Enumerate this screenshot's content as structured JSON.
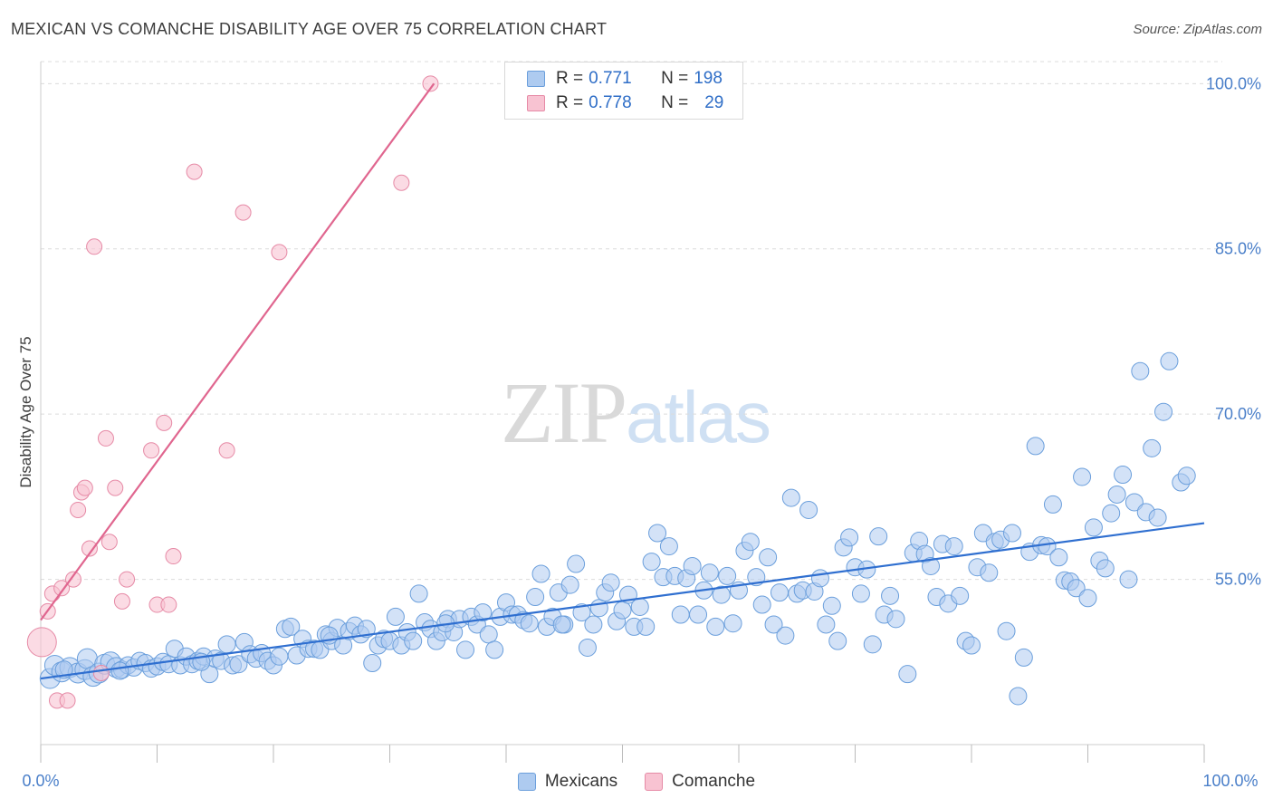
{
  "header": {
    "title": "MEXICAN VS COMANCHE DISABILITY AGE OVER 75 CORRELATION CHART",
    "source": "Source: ZipAtlas.com"
  },
  "watermark": {
    "part1": "ZIP",
    "part2": "atlas"
  },
  "legend": {
    "rows": [
      {
        "r_label": "R = ",
        "r_value": "0.771",
        "n_label": "N = ",
        "n_value": "198"
      },
      {
        "r_label": "R = ",
        "r_value": "0.778",
        "n_label": "N = ",
        "n_value": "29"
      }
    ]
  },
  "bottom_legend": {
    "series1": "Mexicans",
    "series2": "Comanche"
  },
  "colors": {
    "mexicans_fill": "#aecbf0",
    "mexicans_stroke": "#6b9fdc",
    "mexicans_line": "#2f6fd0",
    "comanche_fill": "#f8c3d2",
    "comanche_stroke": "#e68aa6",
    "comanche_line": "#e0668f",
    "grid": "#dcdcdc",
    "axis_text": "#4a7fc9"
  },
  "chart_data": {
    "type": "scatter",
    "title": "MEXICAN VS COMANCHE DISABILITY AGE OVER 75 CORRELATION CHART",
    "xlabel": "",
    "ylabel": "Disability Age Over 75",
    "xlim": [
      0,
      100
    ],
    "ylim": [
      40,
      102
    ],
    "x_tick_labels": [
      "0.0%",
      "100.0%"
    ],
    "y_ticks": [
      55,
      70,
      85,
      100
    ],
    "y_tick_labels": [
      "55.0%",
      "70.0%",
      "85.0%",
      "100.0%"
    ],
    "grid": true,
    "legend_position": "top-center",
    "series": [
      {
        "name": "Mexicans",
        "r": 0.771,
        "n": 198,
        "trendline": {
          "x": [
            0,
            100
          ],
          "y": [
            46.0,
            60.1
          ]
        },
        "points": [
          [
            0.8,
            46.0
          ],
          [
            1.2,
            47.2
          ],
          [
            1.8,
            46.6
          ],
          [
            2.5,
            47.0
          ],
          [
            3.2,
            46.5
          ],
          [
            3.8,
            46.8
          ],
          [
            4.0,
            47.8
          ],
          [
            4.5,
            46.2
          ],
          [
            5.0,
            46.5
          ],
          [
            5.5,
            47.3
          ],
          [
            6.0,
            47.5
          ],
          [
            6.5,
            47.0
          ],
          [
            7.0,
            46.8
          ],
          [
            7.5,
            47.2
          ],
          [
            8.0,
            47.0
          ],
          [
            8.5,
            47.6
          ],
          [
            9.0,
            47.4
          ],
          [
            9.5,
            46.9
          ],
          [
            10.0,
            47.1
          ],
          [
            10.5,
            47.5
          ],
          [
            11.0,
            47.3
          ],
          [
            11.5,
            48.7
          ],
          [
            12.0,
            47.2
          ],
          [
            12.5,
            48.0
          ],
          [
            13.0,
            47.3
          ],
          [
            13.5,
            47.6
          ],
          [
            14.0,
            48.0
          ],
          [
            14.5,
            46.4
          ],
          [
            15.0,
            47.8
          ],
          [
            15.5,
            47.6
          ],
          [
            16.0,
            49.1
          ],
          [
            16.5,
            47.2
          ],
          [
            17.0,
            47.3
          ],
          [
            17.5,
            49.3
          ],
          [
            18.0,
            48.2
          ],
          [
            18.5,
            47.8
          ],
          [
            19.0,
            48.3
          ],
          [
            19.5,
            47.6
          ],
          [
            20.0,
            47.2
          ],
          [
            20.5,
            48.0
          ],
          [
            21.0,
            50.5
          ],
          [
            21.5,
            50.7
          ],
          [
            22.0,
            48.1
          ],
          [
            22.5,
            49.6
          ],
          [
            23.0,
            48.7
          ],
          [
            23.5,
            48.7
          ],
          [
            24.0,
            48.6
          ],
          [
            24.5,
            50.0
          ],
          [
            25.0,
            49.4
          ],
          [
            25.5,
            50.6
          ],
          [
            26.0,
            49.0
          ],
          [
            26.5,
            50.3
          ],
          [
            27.0,
            50.8
          ],
          [
            27.5,
            50.0
          ],
          [
            28.0,
            50.5
          ],
          [
            28.5,
            47.4
          ],
          [
            29.0,
            49.0
          ],
          [
            29.5,
            49.6
          ],
          [
            30.0,
            49.4
          ],
          [
            30.5,
            51.6
          ],
          [
            31.0,
            49.0
          ],
          [
            31.5,
            50.2
          ],
          [
            32.0,
            49.4
          ],
          [
            32.5,
            53.7
          ],
          [
            33.0,
            51.1
          ],
          [
            33.5,
            50.5
          ],
          [
            34.0,
            49.4
          ],
          [
            34.5,
            50.2
          ],
          [
            35.0,
            51.4
          ],
          [
            35.5,
            50.2
          ],
          [
            36.0,
            51.4
          ],
          [
            36.5,
            48.6
          ],
          [
            37.0,
            51.6
          ],
          [
            37.5,
            50.9
          ],
          [
            38.0,
            52.0
          ],
          [
            38.5,
            50.0
          ],
          [
            39.0,
            48.6
          ],
          [
            39.5,
            51.6
          ],
          [
            40.0,
            52.9
          ],
          [
            40.5,
            51.8
          ],
          [
            41.0,
            51.8
          ],
          [
            41.5,
            51.3
          ],
          [
            42.0,
            51.0
          ],
          [
            42.5,
            53.4
          ],
          [
            43.0,
            55.5
          ],
          [
            43.5,
            50.7
          ],
          [
            44.0,
            51.6
          ],
          [
            44.5,
            53.8
          ],
          [
            45.0,
            50.9
          ],
          [
            45.5,
            54.5
          ],
          [
            46.0,
            56.4
          ],
          [
            46.5,
            52.0
          ],
          [
            47.0,
            48.8
          ],
          [
            47.5,
            50.9
          ],
          [
            48.0,
            52.4
          ],
          [
            48.5,
            53.8
          ],
          [
            49.0,
            54.7
          ],
          [
            49.5,
            51.2
          ],
          [
            50.0,
            52.2
          ],
          [
            50.5,
            53.6
          ],
          [
            51.0,
            50.7
          ],
          [
            51.5,
            52.5
          ],
          [
            52.0,
            50.7
          ],
          [
            52.5,
            56.6
          ],
          [
            53.0,
            59.2
          ],
          [
            53.5,
            55.2
          ],
          [
            54.0,
            58.0
          ],
          [
            54.5,
            55.3
          ],
          [
            55.0,
            51.8
          ],
          [
            55.5,
            55.1
          ],
          [
            56.0,
            56.2
          ],
          [
            56.5,
            51.8
          ],
          [
            57.0,
            54.0
          ],
          [
            57.5,
            55.6
          ],
          [
            58.0,
            50.7
          ],
          [
            58.5,
            53.6
          ],
          [
            59.0,
            55.3
          ],
          [
            59.5,
            51.0
          ],
          [
            60.0,
            54.0
          ],
          [
            60.5,
            57.6
          ],
          [
            61.0,
            58.4
          ],
          [
            61.5,
            55.2
          ],
          [
            62.0,
            52.7
          ],
          [
            62.5,
            57.0
          ],
          [
            63.0,
            50.9
          ],
          [
            63.5,
            53.8
          ],
          [
            64.0,
            49.9
          ],
          [
            64.5,
            62.4
          ],
          [
            65.0,
            53.7
          ],
          [
            65.5,
            54.0
          ],
          [
            66.0,
            61.3
          ],
          [
            66.5,
            53.9
          ],
          [
            67.0,
            55.1
          ],
          [
            67.5,
            50.9
          ],
          [
            68.0,
            52.6
          ],
          [
            68.5,
            49.4
          ],
          [
            69.0,
            57.9
          ],
          [
            69.5,
            58.8
          ],
          [
            70.0,
            56.1
          ],
          [
            70.5,
            53.7
          ],
          [
            71.0,
            55.9
          ],
          [
            71.5,
            49.1
          ],
          [
            72.0,
            58.9
          ],
          [
            72.5,
            51.8
          ],
          [
            73.0,
            53.5
          ],
          [
            73.5,
            51.4
          ],
          [
            74.5,
            46.4
          ],
          [
            75.0,
            57.4
          ],
          [
            75.5,
            58.5
          ],
          [
            76.0,
            57.3
          ],
          [
            76.5,
            56.2
          ],
          [
            77.0,
            53.4
          ],
          [
            77.5,
            58.2
          ],
          [
            78.0,
            52.8
          ],
          [
            78.5,
            58.0
          ],
          [
            79.0,
            53.5
          ],
          [
            79.5,
            49.4
          ],
          [
            80.0,
            49.0
          ],
          [
            80.5,
            56.1
          ],
          [
            81.0,
            59.2
          ],
          [
            81.5,
            55.6
          ],
          [
            82.0,
            58.4
          ],
          [
            82.5,
            58.6
          ],
          [
            83.0,
            50.3
          ],
          [
            83.5,
            59.2
          ],
          [
            84.0,
            44.4
          ],
          [
            84.5,
            47.9
          ],
          [
            85.0,
            57.5
          ],
          [
            85.5,
            67.1
          ],
          [
            86.0,
            58.1
          ],
          [
            86.5,
            58.0
          ],
          [
            87.0,
            61.8
          ],
          [
            87.5,
            57.0
          ],
          [
            88.0,
            54.9
          ],
          [
            88.5,
            54.8
          ],
          [
            89.0,
            54.2
          ],
          [
            89.5,
            64.3
          ],
          [
            90.0,
            53.3
          ],
          [
            90.5,
            59.7
          ],
          [
            91.0,
            56.7
          ],
          [
            91.5,
            56.0
          ],
          [
            92.0,
            61.0
          ],
          [
            92.5,
            62.7
          ],
          [
            93.0,
            64.5
          ],
          [
            93.5,
            55.0
          ],
          [
            94.0,
            62.0
          ],
          [
            94.5,
            73.9
          ],
          [
            95.0,
            61.1
          ],
          [
            95.5,
            66.9
          ],
          [
            96.0,
            60.6
          ],
          [
            96.5,
            70.2
          ],
          [
            97.0,
            74.8
          ],
          [
            98.0,
            63.8
          ],
          [
            98.5,
            64.4
          ],
          [
            2.0,
            46.8
          ],
          [
            6.8,
            46.7
          ],
          [
            13.8,
            47.5
          ],
          [
            24.8,
            49.9
          ],
          [
            34.8,
            51.0
          ],
          [
            44.8,
            50.9
          ]
        ]
      },
      {
        "name": "Comanche",
        "r": 0.778,
        "n": 29,
        "trendline": {
          "x": [
            0,
            33.8
          ],
          "y": [
            51.3,
            100.0
          ]
        },
        "points": [
          [
            0.1,
            49.3
          ],
          [
            0.6,
            52.1
          ],
          [
            1.0,
            53.7
          ],
          [
            1.4,
            44.0
          ],
          [
            1.8,
            54.2
          ],
          [
            2.3,
            44.0
          ],
          [
            2.8,
            55.0
          ],
          [
            3.2,
            61.3
          ],
          [
            3.5,
            62.9
          ],
          [
            3.8,
            63.3
          ],
          [
            4.2,
            57.8
          ],
          [
            4.6,
            85.2
          ],
          [
            5.2,
            46.5
          ],
          [
            5.6,
            67.8
          ],
          [
            5.9,
            58.4
          ],
          [
            6.4,
            63.3
          ],
          [
            7.0,
            53.0
          ],
          [
            7.4,
            55.0
          ],
          [
            9.5,
            66.7
          ],
          [
            10.0,
            52.7
          ],
          [
            10.6,
            69.2
          ],
          [
            11.0,
            52.7
          ],
          [
            11.4,
            57.1
          ],
          [
            13.2,
            92.0
          ],
          [
            16.0,
            66.7
          ],
          [
            17.4,
            88.3
          ],
          [
            20.5,
            84.7
          ],
          [
            31.0,
            91.0
          ],
          [
            33.5,
            100.0
          ]
        ]
      }
    ]
  }
}
